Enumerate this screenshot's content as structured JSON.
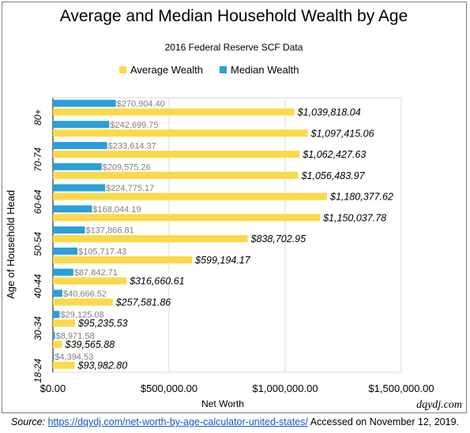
{
  "chart_data": {
    "type": "bar",
    "orientation": "horizontal",
    "title": "Average and Median Household Wealth by Age",
    "subtitle": "2016 Federal Reserve SCF Data",
    "xlabel": "Net Worth",
    "ylabel": "Age of Household Head",
    "xlim": [
      0,
      1500000
    ],
    "x_ticks": [
      {
        "value": 0,
        "label": "$0.00"
      },
      {
        "value": 500000,
        "label": "$500,000.00"
      },
      {
        "value": 1000000,
        "label": "$1,000,000.00"
      },
      {
        "value": 1500000,
        "label": "$1,500,000.00"
      }
    ],
    "categories": [
      {
        "group": "80+",
        "values": {
          "average": 1039818.04,
          "median": 270904.4
        }
      },
      {
        "group": "80+",
        "values": {
          "average": 1097415.06,
          "median": 242699.75
        }
      },
      {
        "group": "70-74",
        "values": {
          "average": 1062427.63,
          "median": 233614.37
        }
      },
      {
        "group": "70-74",
        "values": {
          "average": 1056483.97,
          "median": 209575.26
        }
      },
      {
        "group": "60-64",
        "values": {
          "average": 1180377.62,
          "median": 224775.17
        }
      },
      {
        "group": "60-64",
        "values": {
          "average": 1150037.78,
          "median": 168044.19
        }
      },
      {
        "group": "50-54",
        "values": {
          "average": 838702.95,
          "median": 137866.81
        }
      },
      {
        "group": "50-54",
        "values": {
          "average": 599194.17,
          "median": 105717.43
        }
      },
      {
        "group": "40-44",
        "values": {
          "average": 316660.61,
          "median": 87842.71
        }
      },
      {
        "group": "40-44",
        "values": {
          "average": 257581.86,
          "median": 40666.52
        }
      },
      {
        "group": "30-34",
        "values": {
          "average": 95235.53,
          "median": 29125.08
        }
      },
      {
        "group": "30-34",
        "values": {
          "average": 39565.88,
          "median": 8971.58
        }
      },
      {
        "group": "18-24",
        "values": {
          "average": 93982.8,
          "median": 4394.53
        }
      }
    ],
    "y_tick_labels": [
      "80+",
      "70-74",
      "60-64",
      "50-54",
      "40-44",
      "30-34",
      "18-24"
    ],
    "series": [
      {
        "name": "Average Wealth",
        "key": "average",
        "color": "#fcd94a",
        "labels": [
          "$1,039,818.04",
          "$1,097,415.06",
          "$1,062,427.63",
          "$1,056,483.97",
          "$1,180,377.62",
          "$1,150,037.78",
          "$838,702.95",
          "$599,194.17",
          "$316,660.61",
          "$257,581.86",
          "$95,235.53",
          "$39,565.88",
          "$93,982.80"
        ]
      },
      {
        "name": "Median Wealth",
        "key": "median",
        "color": "#2b9fd8",
        "labels": [
          "$270,904.40",
          "$242,699.75",
          "$233,614.37",
          "$209,575.26",
          "$224,775.17",
          "$168,044.19",
          "$137,866.81",
          "$105,717.43",
          "$87,842.71",
          "$40,666.52",
          "$29,125.08",
          "$8,971.58",
          "$4,394.53"
        ]
      }
    ],
    "legend_position": "top",
    "grid": true,
    "watermark": "dqydj.com"
  },
  "colors": {
    "average": "#fcd94a",
    "median": "#2b9fd8",
    "grid": "#d9d9d9",
    "axis": "#000000",
    "median_label": "#7f7f7f"
  },
  "source": {
    "label": "Source:",
    "url": "https://dqydj.com/net-worth-by-age-calculator-united-states/",
    "accessed": "Accessed on November 12, 2019."
  }
}
